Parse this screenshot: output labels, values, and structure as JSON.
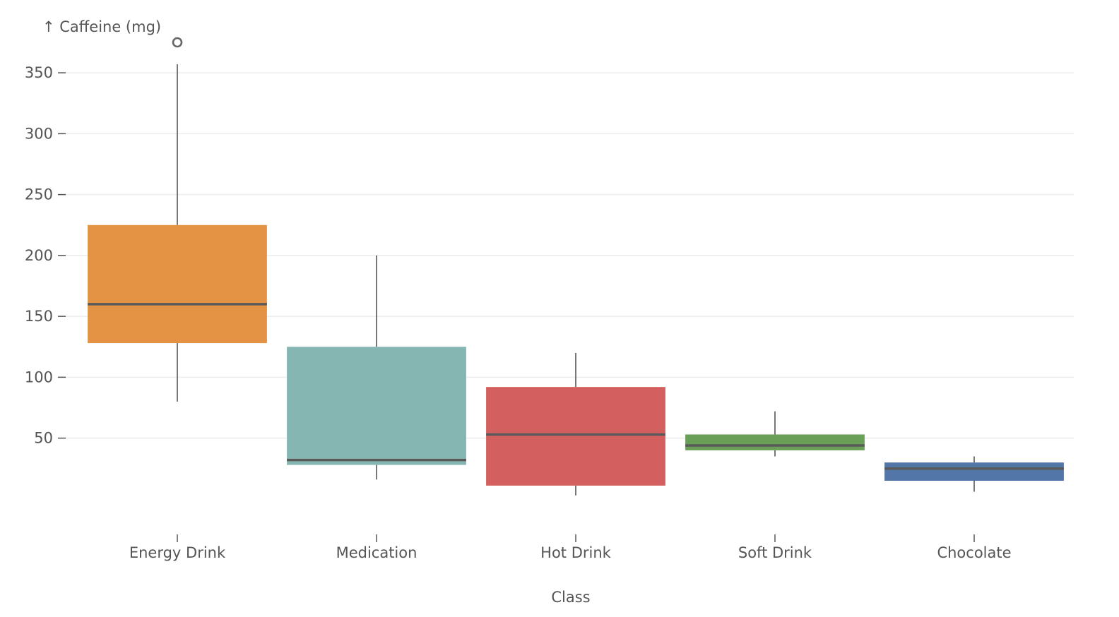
{
  "chart_data": {
    "type": "boxplot",
    "xlabel": "Class",
    "ylabel": "↑ Caffeine (mg)",
    "ylim": [
      -25,
      375
    ],
    "yticks": [
      50,
      100,
      150,
      200,
      250,
      300,
      350
    ],
    "grid": true,
    "categories": [
      "Energy Drink",
      "Medication",
      "Hot Drink",
      "Soft Drink",
      "Chocolate"
    ],
    "boxes": [
      {
        "category": "Energy Drink",
        "color": "#e39343",
        "min": 80,
        "q1": 128,
        "median": 160,
        "q3": 225,
        "max": 357,
        "outliers": [
          375
        ]
      },
      {
        "category": "Medication",
        "color": "#86b6b2",
        "min": 16,
        "q1": 28,
        "median": 32,
        "q3": 125,
        "max": 200,
        "outliers": []
      },
      {
        "category": "Hot Drink",
        "color": "#d45f5f",
        "min": 3,
        "q1": 11,
        "median": 53,
        "q3": 92,
        "max": 120,
        "outliers": []
      },
      {
        "category": "Soft Drink",
        "color": "#6a9f58",
        "min": 35,
        "q1": 40,
        "median": 44,
        "q3": 53,
        "max": 72,
        "outliers": []
      },
      {
        "category": "Chocolate",
        "color": "#5276a8",
        "min": 6,
        "q1": 15,
        "median": 25,
        "q3": 30,
        "max": 35,
        "outliers": []
      }
    ]
  }
}
